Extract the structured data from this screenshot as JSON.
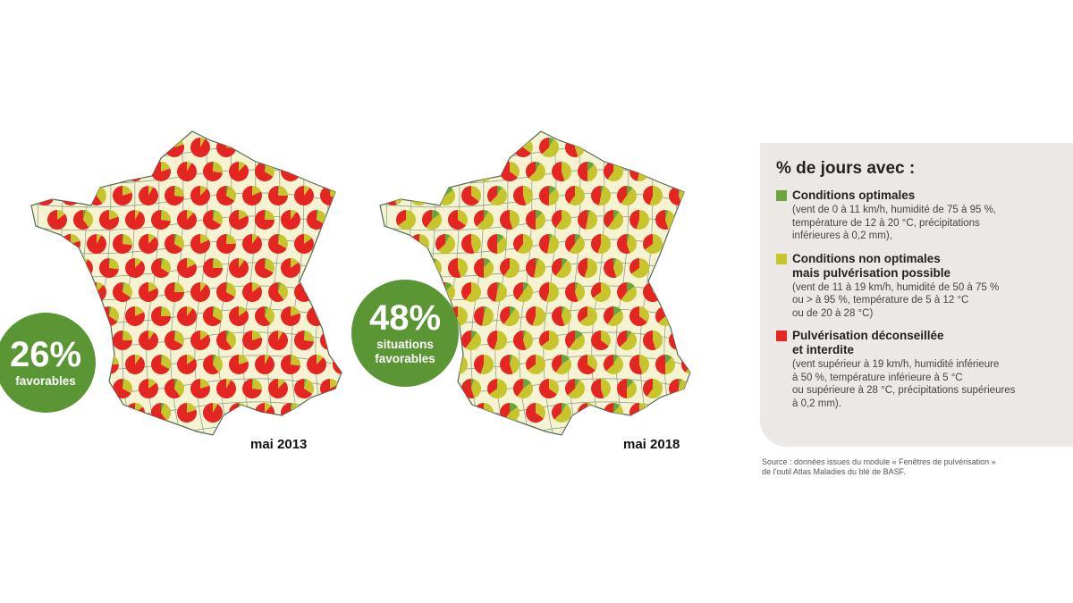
{
  "maps": [
    {
      "id": "map2013",
      "label": "mai 2013",
      "badge_pct": "26%",
      "badge_text": "favorables",
      "pies": [
        [
          0.02,
          0.23,
          0.75
        ],
        [
          0.0,
          0.1,
          0.9
        ],
        [
          0.03,
          0.3,
          0.67
        ],
        [
          0.0,
          0.15,
          0.85
        ],
        [
          0.05,
          0.35,
          0.6
        ],
        [
          0.0,
          0.2,
          0.8
        ],
        [
          0.0,
          0.08,
          0.92
        ],
        [
          0.02,
          0.25,
          0.73
        ],
        [
          0.0,
          0.12,
          0.88
        ],
        [
          0.04,
          0.3,
          0.66
        ],
        [
          0.0,
          0.18,
          0.82
        ]
      ]
    },
    {
      "id": "map2018",
      "label": "mai 2018",
      "badge_pct": "48%",
      "badge_text": "situations\nfavorables",
      "pies": [
        [
          0.1,
          0.5,
          0.4
        ],
        [
          0.0,
          0.55,
          0.45
        ],
        [
          0.05,
          0.4,
          0.55
        ],
        [
          0.0,
          0.65,
          0.35
        ],
        [
          0.15,
          0.45,
          0.4
        ],
        [
          0.0,
          0.35,
          0.65
        ],
        [
          0.08,
          0.55,
          0.37
        ],
        [
          0.0,
          0.45,
          0.55
        ],
        [
          0.12,
          0.38,
          0.5
        ],
        [
          0.0,
          0.6,
          0.4
        ],
        [
          0.05,
          0.48,
          0.47
        ]
      ]
    }
  ],
  "legend": {
    "title": "% de jours avec :",
    "items": [
      {
        "color": "#6aa53c",
        "title": "Conditions optimales",
        "desc": "(vent de 0 à 11 km/h, humidité de 75 à 95 %,\ntempérature de 12 à 20 °C, précipitations\ninférieures à 0,2 mm),"
      },
      {
        "color": "#c6c62c",
        "title": "Conditions non optimales\nmais pulvérisation possible",
        "desc": "(vent de 11 à 19 km/h, humidité de 50 à 75 %\nou > à 95 %, température de 5 à 12 °C\nou de 20 à 28 °C)"
      },
      {
        "color": "#e52521",
        "title": "Pulvérisation déconseillée\net interdite",
        "desc": "(vent supérieur à 19 km/h, humidité inférieure\nà 50 %, température inférieure à 5 °C\nou supérieure à 28 °C, précipitations supérieures\nà 0,2 mm)."
      }
    ]
  },
  "source": "Source : données issues du module « Fenêtres de pulvérisation »\nde l’outil Atlas Maladies du blé de BASF.",
  "colors": {
    "optimal": "#6aa53c",
    "possible": "#c6c62c",
    "forbidden": "#e52521",
    "land": "#f6f3d2",
    "badge": "#5b9634"
  }
}
